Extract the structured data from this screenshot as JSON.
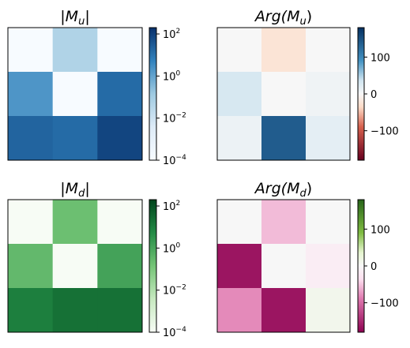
{
  "chart_data": [
    {
      "type": "heatmap",
      "title": "|M_u|",
      "rows": 3,
      "cols": 3,
      "values": [
        [
          0.0001,
          0.05,
          0.0001
        ],
        [
          2.0,
          0.0001,
          15.0
        ],
        [
          20.0,
          15.0,
          80.0
        ]
      ],
      "colormap": "Blues",
      "colorbar": {
        "scale": "log",
        "range": [
          0.0001,
          200
        ],
        "ticks": [
          0.01,
          1,
          100
        ],
        "tick_labels": [
          "10",
          "10",
          "10"
        ],
        "tick_exponents": [
          "−2",
          "0",
          "2"
        ],
        "min_label": "10",
        "min_exponent": "−4"
      }
    },
    {
      "type": "heatmap",
      "title": "Arg(M_u)",
      "rows": 3,
      "cols": 3,
      "values": [
        [
          0,
          -25,
          0
        ],
        [
          30,
          0,
          8
        ],
        [
          10,
          140,
          18
        ]
      ],
      "colormap": "RdBu",
      "colorbar": {
        "scale": "linear",
        "range": [
          -180,
          180
        ],
        "ticks": [
          -100,
          0,
          100
        ],
        "tick_labels": [
          "−100",
          "0",
          "100"
        ]
      }
    },
    {
      "type": "heatmap",
      "title": "|M_d|",
      "rows": 3,
      "cols": 3,
      "values": [
        [
          0.0001,
          0.2,
          0.0001
        ],
        [
          0.3,
          0.0001,
          1.2
        ],
        [
          10.0,
          20.0,
          20.0
        ]
      ],
      "colormap": "Greens",
      "colorbar": {
        "scale": "log",
        "range": [
          0.0001,
          200
        ],
        "ticks": [
          0.01,
          1,
          100
        ],
        "tick_labels": [
          "10",
          "10",
          "10"
        ],
        "tick_exponents": [
          "−2",
          "0",
          "2"
        ],
        "min_label": "10",
        "min_exponent": "−4"
      }
    },
    {
      "type": "heatmap",
      "title": "Arg(M_d)",
      "rows": 3,
      "cols": 3,
      "values": [
        [
          0,
          -55,
          0
        ],
        [
          -165,
          0,
          -15
        ],
        [
          -80,
          -165,
          10
        ]
      ],
      "colormap": "PiYG",
      "colorbar": {
        "scale": "linear",
        "range": [
          -180,
          180
        ],
        "ticks": [
          -100,
          0,
          100
        ],
        "tick_labels": [
          "−100",
          "0",
          "100"
        ]
      }
    }
  ],
  "titles": {
    "mu_abs": {
      "open": "|",
      "var": "M",
      "sub": "u",
      "close": "|"
    },
    "mu_arg": {
      "prefix": "Arg(",
      "var": "M",
      "sub": "u",
      "close": ")"
    },
    "md_abs": {
      "open": "|",
      "var": "M",
      "sub": "d",
      "close": "|"
    },
    "md_arg": {
      "prefix": "Arg(",
      "var": "M",
      "sub": "d",
      "close": ")"
    }
  }
}
